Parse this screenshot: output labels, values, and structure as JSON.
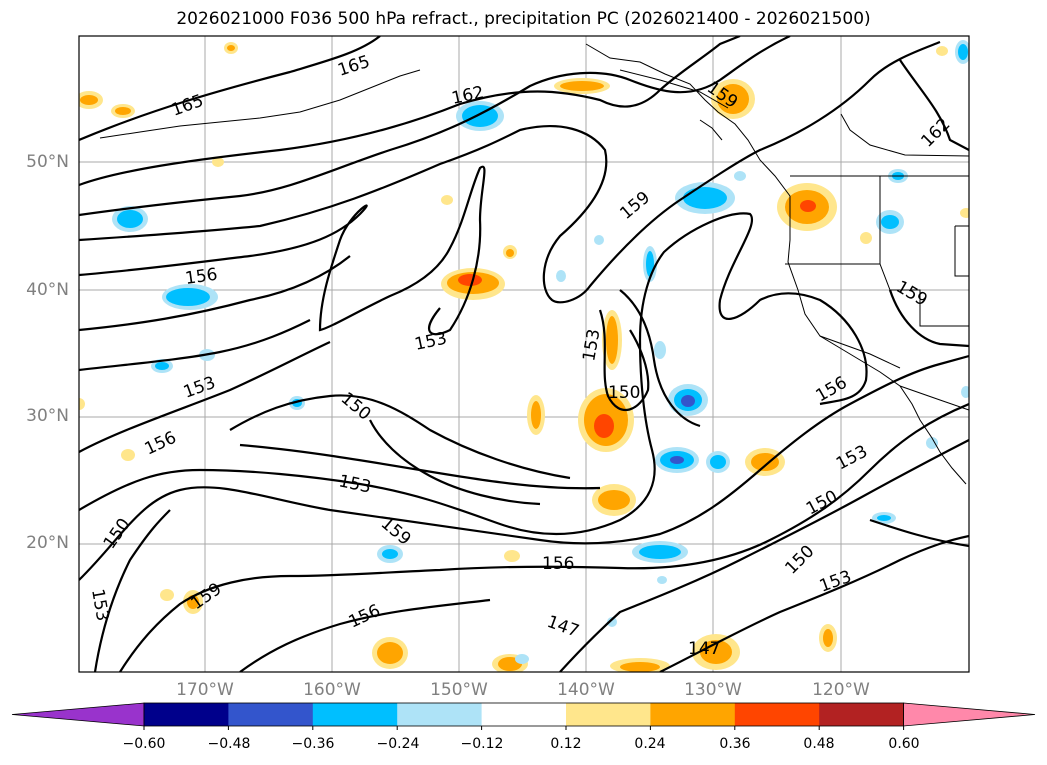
{
  "title": "2026021000 F036 500 hPa refract., precipitation PC (2026021400 - 2026021500)",
  "map": {
    "lat_ticks": [
      "50°N",
      "40°N",
      "30°N",
      "20°N"
    ],
    "lon_ticks": [
      "170°W",
      "160°W",
      "150°W",
      "140°W",
      "130°W",
      "120°W"
    ],
    "contour_labels": [
      "165",
      "165",
      "162",
      "159",
      "162",
      "159",
      "156",
      "153",
      "153",
      "150",
      "150",
      "159",
      "156",
      "153",
      "153",
      "156",
      "159",
      "156",
      "153",
      "150",
      "150",
      "156",
      "150",
      "153",
      "147",
      "147",
      "159"
    ],
    "gridlines": true
  },
  "colorbar": {
    "labels": [
      "−0.60",
      "−0.48",
      "−0.36",
      "−0.24",
      "−0.12",
      "0.12",
      "0.24",
      "0.36",
      "0.48",
      "0.60"
    ],
    "colors": [
      "#9933cc",
      "#00008b",
      "#3355cc",
      "#00bfff",
      "#aee3f7",
      "#ffffff",
      "#ffe68c",
      "#ffa500",
      "#ff4500",
      "#b22222",
      "#ff88aa"
    ],
    "extend": "both"
  }
}
